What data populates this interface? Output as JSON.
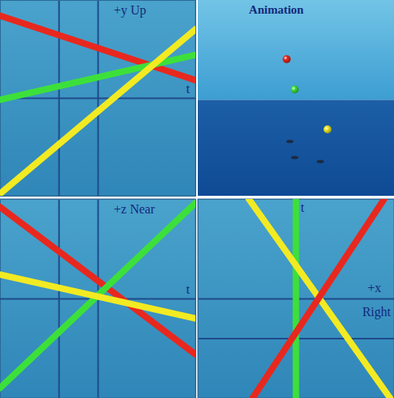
{
  "chart_data": [
    {
      "type": "line",
      "x_label": "t",
      "y_label": "+y Up",
      "x": [
        -2.5,
        2.5
      ],
      "xlim": [
        -2.5,
        2.5
      ],
      "ylim": [
        -2.5,
        2.5
      ],
      "xticks": [
        -1,
        0
      ],
      "yticks": [
        0
      ],
      "grid": true,
      "tick_labels": false,
      "series": [
        {
          "color": "#e8281e",
          "values": [
            2.1,
            0.45
          ]
        },
        {
          "color": "#3de03a",
          "values": [
            -0.05,
            1.1
          ]
        },
        {
          "color": "#f2ea22",
          "values": [
            -2.45,
            1.75
          ]
        }
      ]
    },
    {
      "type": "scatter",
      "title": "Animation",
      "xlim": [
        0,
        245
      ],
      "ylim": [
        0,
        245
      ],
      "tick_labels": false,
      "series": [
        {
          "color": "#1c2430",
          "marker": "shadow",
          "x": [
            115,
            121,
            153
          ],
          "values": [
            68,
            48,
            43
          ]
        },
        {
          "color": "#e8281e",
          "marker": "sphere",
          "x": [
            111
          ],
          "values": [
            171
          ]
        },
        {
          "color": "#3de03a",
          "marker": "sphere",
          "x": [
            121
          ],
          "values": [
            133
          ]
        },
        {
          "color": "#f2ea22",
          "marker": "sphere",
          "x": [
            162
          ],
          "values": [
            83
          ]
        }
      ]
    },
    {
      "type": "line",
      "x_label": "t",
      "y_label": "+z Near",
      "x": [
        -2.5,
        2.5
      ],
      "xlim": [
        -2.5,
        2.5
      ],
      "ylim": [
        -2.5,
        2.5
      ],
      "xticks": [
        -1,
        0
      ],
      "yticks": [
        0
      ],
      "grid": true,
      "tick_labels": false,
      "series": [
        {
          "color": "#e8281e",
          "values": [
            2.3,
            -1.4
          ]
        },
        {
          "color": "#3de03a",
          "values": [
            -2.25,
            2.4
          ]
        },
        {
          "color": "#f2ea22",
          "values": [
            0.6,
            -0.5
          ]
        }
      ]
    },
    {
      "type": "line",
      "orientation": "horizontal",
      "x_label": "t",
      "y_label": "+x Right",
      "x": [
        -2.5,
        2.5
      ],
      "xlim": [
        -2.5,
        2.5
      ],
      "ylim": [
        -2.5,
        2.5
      ],
      "xticks": [
        -1,
        0
      ],
      "yticks": [
        0
      ],
      "grid": true,
      "tick_labels": false,
      "series": [
        {
          "color": "#3de03a",
          "values": [
            0,
            0
          ]
        },
        {
          "color": "#f2ea22",
          "values": [
            2.4,
            -1.2
          ]
        },
        {
          "color": "#e8281e",
          "values": [
            -1.1,
            2.25
          ]
        }
      ]
    }
  ]
}
